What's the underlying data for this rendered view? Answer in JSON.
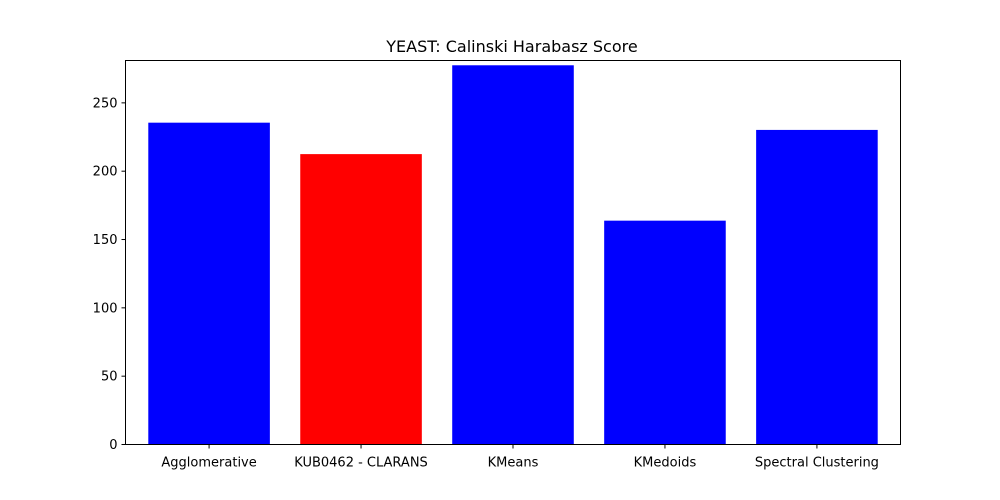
{
  "chart_data": {
    "type": "bar",
    "title": "YEAST: Calinski Harabasz Score",
    "xlabel": "",
    "ylabel": "",
    "categories": [
      "Agglomerative",
      "KUB0462 - CLARANS",
      "KMeans",
      "KMedoids",
      "Spectral Clustering"
    ],
    "values": [
      235.5,
      212.5,
      277.5,
      163.8,
      230.2
    ],
    "bar_colors": [
      "#0000ff",
      "#ff0000",
      "#0000ff",
      "#0000ff",
      "#0000ff"
    ],
    "ylim": [
      0,
      281
    ],
    "yticks": [
      0,
      50,
      100,
      150,
      200,
      250
    ],
    "grid": false,
    "legend": "none"
  }
}
